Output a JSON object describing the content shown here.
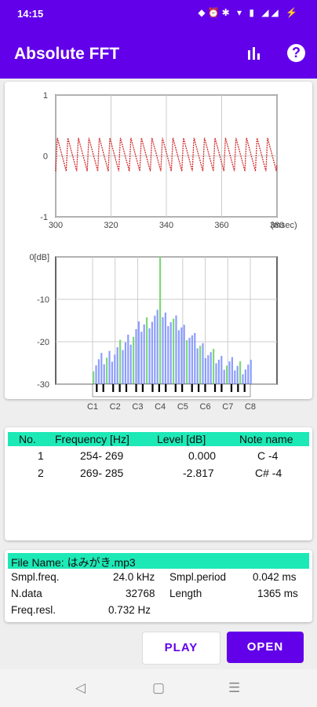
{
  "status": {
    "time": "14:15",
    "icons": "◆⏰✱ ▾ ▮ ◢◢ ⚡"
  },
  "appbar": {
    "title": "Absolute FFT",
    "chart_icon": "bar-chart-icon",
    "help_icon": "help-icon",
    "help_glyph": "?"
  },
  "waveform": {
    "y_ticks": [
      "1",
      "0",
      "-1"
    ],
    "x_ticks": [
      "300",
      "320",
      "340",
      "360",
      "380"
    ],
    "x_unit": "(msec)"
  },
  "spectrum": {
    "y_ticks": [
      "0[dB]",
      "-10",
      "-20",
      "-30"
    ],
    "notes": [
      "C1",
      "C2",
      "C3",
      "C4",
      "C5",
      "C6",
      "C7",
      "C8"
    ]
  },
  "chart_data": [
    {
      "type": "line",
      "title": "",
      "xlabel": "(msec)",
      "xlim": [
        300,
        380
      ],
      "ylim": [
        -1,
        1
      ],
      "x_ticks": [
        300,
        320,
        340,
        360,
        380
      ],
      "y_ticks": [
        1,
        0,
        -1
      ],
      "grid": true,
      "series": [
        {
          "values_description_period_ms": 3.8,
          "amplitude": [
            -0.25,
            0.3
          ]
        }
      ]
    },
    {
      "type": "bar",
      "title": "",
      "ylabel": "[dB]",
      "ylim": [
        -30,
        0
      ],
      "categories": [
        "C1",
        "C2",
        "C3",
        "C4",
        "C5",
        "C6",
        "C7",
        "C8"
      ],
      "y_ticks": [
        0,
        -10,
        -20,
        -30
      ],
      "peak_db": 0.0,
      "grid": true
    }
  ],
  "table": {
    "headers": [
      "No.",
      "Frequency [Hz]",
      "Level [dB]",
      "Note name"
    ],
    "rows": [
      {
        "no": "1",
        "freq": "254- 269",
        "level": "0.000",
        "note": "C -4"
      },
      {
        "no": "2",
        "freq": "269- 285",
        "level": "-2.817",
        "note": "C# -4"
      }
    ]
  },
  "info": {
    "file_name": "File Name: はみがき.mp3",
    "smpl_freq_label": "Smpl.freq.",
    "smpl_freq_value": "24.0 kHz",
    "smpl_period_label": "Smpl.period",
    "smpl_period_value": "0.042 ms",
    "ndata_label": "N.data",
    "ndata_value": "32768",
    "length_label": "Length",
    "length_value": "1365 ms",
    "freq_resl_label": "Freq.resl.",
    "freq_resl_value": "0.732 Hz"
  },
  "buttons": {
    "play": "PLAY",
    "open": "OPEN"
  },
  "navbar": {
    "back": "◁",
    "home": "▢",
    "menu": "☰"
  }
}
